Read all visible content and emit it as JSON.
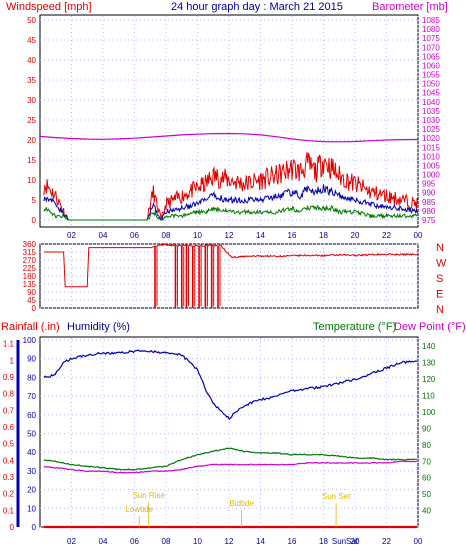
{
  "page": {
    "title": "24 hour graph day : March 21 2015"
  },
  "colors": {
    "wind": "#e00000",
    "wind_avg": "#0000aa",
    "wind_low": "#007700",
    "baro": "#cc00cc",
    "dir": "#e00000",
    "rain": "#e00000",
    "humidity": "#0000aa",
    "temp": "#007700",
    "dew": "#cc00cc",
    "sun": "#ddbb00"
  },
  "chart_data": [
    {
      "type": "line",
      "id": "wind-baro",
      "title": "24 hour graph day : March 21 2015",
      "ylabel": "Windspeed [mph]",
      "ylabel_right": "Barometer [mb]",
      "ylim": [
        0,
        50
      ],
      "y_ticks": [
        0,
        5,
        10,
        15,
        20,
        25,
        30,
        35,
        40,
        45,
        50
      ],
      "ylim_right": [
        975,
        1085
      ],
      "y_ticks_right": [
        975,
        980,
        985,
        990,
        995,
        1000,
        1005,
        1010,
        1015,
        1020,
        1025,
        1030,
        1035,
        1040,
        1045,
        1050,
        1055,
        1060,
        1065,
        1070,
        1075,
        1080,
        1085
      ],
      "x_ticks": [
        "02",
        "04",
        "06",
        "08",
        "10",
        "12",
        "14",
        "16",
        "18",
        "20",
        "22",
        "00"
      ],
      "series": [
        {
          "axis": "left",
          "x": [
            0,
            0.3,
            0.6,
            1,
            1.4,
            1.8,
            2,
            2.5,
            3,
            4,
            5,
            6,
            6.8,
            7,
            7.2,
            7.4,
            7.7,
            8,
            9,
            10,
            10.5,
            11,
            12,
            13,
            14,
            15,
            16,
            16.5,
            17,
            17.5,
            18,
            18.5,
            19,
            20,
            21,
            22,
            23,
            24
          ],
          "values": [
            6,
            9,
            8,
            6,
            3,
            0,
            0,
            0,
            0,
            0,
            0,
            0,
            0,
            4,
            7,
            4,
            0,
            4,
            6,
            8,
            9,
            11,
            10,
            9,
            10,
            11,
            13,
            12,
            14,
            12,
            15,
            13,
            11,
            9,
            7,
            6,
            5,
            4
          ]
        },
        {
          "axis": "left",
          "x": [
            0,
            0.3,
            0.6,
            1,
            1.4,
            1.8,
            2,
            3,
            4,
            5,
            6,
            6.8,
            7,
            7.2,
            7.4,
            7.7,
            8,
            9,
            10,
            10.5,
            11,
            12,
            13,
            14,
            15,
            16,
            16.5,
            17,
            17.5,
            18,
            18.5,
            19,
            20,
            21,
            22,
            23,
            24
          ],
          "values": [
            4,
            6,
            5,
            4,
            2,
            0,
            0,
            0,
            0,
            0,
            0,
            0,
            2,
            4,
            2,
            0,
            2,
            3,
            4,
            5,
            6,
            5,
            5,
            5,
            6,
            7,
            6,
            8,
            7,
            8,
            7,
            6,
            5,
            4,
            3,
            3,
            2
          ]
        },
        {
          "axis": "left",
          "x": [
            0,
            0.3,
            0.6,
            1,
            1.4,
            1.8,
            2,
            3,
            4,
            5,
            6,
            6.8,
            7,
            7.2,
            7.4,
            7.7,
            8,
            9,
            10,
            10.5,
            11,
            12,
            13,
            14,
            15,
            16,
            16.5,
            17,
            17.5,
            18,
            18.5,
            19,
            20,
            21,
            22,
            23,
            24
          ],
          "values": [
            1,
            3,
            2,
            1,
            1,
            0,
            0,
            0,
            0,
            0,
            0,
            0,
            1,
            2,
            1,
            0,
            1,
            1,
            2,
            2,
            3,
            2,
            2,
            2,
            2,
            3,
            2,
            3,
            3,
            3,
            3,
            2,
            2,
            1,
            1,
            1,
            1
          ]
        },
        {
          "axis": "right",
          "x": [
            0,
            1,
            2,
            3,
            4,
            5,
            6,
            7,
            8,
            9,
            10,
            11,
            12,
            13,
            14,
            15,
            16,
            17,
            18,
            19,
            20,
            21,
            22,
            23,
            24
          ],
          "values": [
            1021,
            1020.3,
            1019.8,
            1019.5,
            1019.4,
            1019.6,
            1020,
            1020.6,
            1021.2,
            1021.8,
            1022.2,
            1022.5,
            1022.6,
            1022.4,
            1021.8,
            1020.8,
            1019.6,
            1018.6,
            1018.1,
            1018,
            1018.2,
            1018.6,
            1019,
            1019.2,
            1019.3
          ]
        }
      ]
    },
    {
      "type": "line",
      "id": "direction",
      "ylim": [
        0,
        360
      ],
      "y_ticks": [
        0,
        45,
        90,
        135,
        180,
        225,
        270,
        315,
        360
      ],
      "y_labels_right": [
        "N",
        "W",
        "S",
        "E",
        "N"
      ],
      "series": [
        {
          "x": [
            0,
            1.5,
            1.6,
            3,
            3.1,
            7.1,
            7.2,
            7.5,
            7.55,
            8,
            9,
            11.5,
            12,
            12.2,
            13,
            14,
            15,
            16,
            17,
            18,
            19,
            20,
            21,
            22,
            23,
            24
          ],
          "values": [
            315,
            315,
            120,
            120,
            340,
            340,
            345,
            350,
            355,
            355,
            352,
            350,
            300,
            285,
            290,
            293,
            291,
            294,
            296,
            295,
            298,
            297,
            300,
            302,
            301,
            303
          ]
        },
        {
          "x": [
            7.3,
            8.6,
            9.0,
            9.3,
            9.7,
            10.1,
            10.5,
            10.9,
            11.3
          ],
          "values": [
            0,
            0,
            0,
            0,
            0,
            0,
            0,
            0,
            0
          ]
        }
      ]
    },
    {
      "type": "line",
      "id": "rain-hum-temp",
      "ylabel": "Rainfall (.in)",
      "ylabel_humidity": "Humidity (%)",
      "ylabel_temp": "Temperature (°F)",
      "ylabel_dew": "Dew Point (°F)",
      "ylim": [
        0,
        1.2
      ],
      "y_ticks": [
        0,
        0.1,
        0.2,
        0.3,
        0.4,
        0.5,
        0.6,
        0.7,
        0.8,
        0.9,
        1,
        1.1
      ],
      "ylim_humidity": [
        0,
        100
      ],
      "y_ticks_humidity": [
        0,
        10,
        20,
        30,
        40,
        50,
        60,
        70,
        80,
        90,
        100
      ],
      "ylim_temp": [
        30,
        145
      ],
      "y_ticks_temp": [
        40,
        50,
        60,
        70,
        80,
        90,
        100,
        110,
        120,
        130,
        140
      ],
      "x_ticks": [
        "02",
        "04",
        "06",
        "08",
        "10",
        "12",
        "14",
        "16",
        "18",
        "20",
        "22",
        "00"
      ],
      "x_labels_extra": [
        "Sun",
        "Sat"
      ],
      "annotations": [
        {
          "x": 6.9,
          "label": "Sun Rise"
        },
        {
          "x": 6.3,
          "label": "Lowtide"
        },
        {
          "x": 12.8,
          "label": "Bidtide"
        },
        {
          "x": 18.8,
          "label": "Sun Set"
        }
      ],
      "series": [
        {
          "axis": "humidity",
          "x": [
            0,
            0.5,
            1,
            1.5,
            2,
            3,
            4,
            5,
            6,
            7,
            8,
            9,
            10,
            10.5,
            11,
            11.5,
            12,
            12.5,
            13,
            14,
            15,
            16,
            17,
            18,
            19,
            20,
            21,
            22,
            23,
            24
          ],
          "values": [
            81,
            80,
            82,
            88,
            90,
            92,
            93,
            93,
            94,
            94,
            93,
            92,
            84,
            74,
            66,
            62,
            58,
            62,
            65,
            68,
            70,
            73,
            74,
            75,
            77,
            79,
            82,
            85,
            88,
            89
          ]
        },
        {
          "axis": "temp",
          "x": [
            0,
            1,
            2,
            3,
            4,
            5,
            6,
            7,
            8,
            9,
            10,
            11,
            12,
            13,
            14,
            15,
            16,
            17,
            18,
            19,
            20,
            21,
            22,
            23,
            24
          ],
          "values": [
            71,
            70,
            68,
            67,
            66,
            65,
            65,
            66,
            67,
            71,
            74,
            76,
            78,
            76,
            75,
            75,
            74,
            74,
            74,
            73,
            72,
            72,
            71,
            71,
            71
          ]
        },
        {
          "axis": "temp",
          "x": [
            0,
            1,
            2,
            3,
            4,
            5,
            6,
            7,
            8,
            9,
            10,
            11,
            12,
            13,
            14,
            15,
            16,
            17,
            18,
            19,
            20,
            21,
            22,
            23,
            24
          ],
          "values": [
            67,
            66,
            65,
            64,
            64,
            63,
            63,
            64,
            64,
            65,
            67,
            68,
            68,
            68,
            68,
            68,
            68,
            69,
            69,
            69,
            69,
            69,
            69,
            70,
            70
          ]
        },
        {
          "axis": "left",
          "x": [
            0,
            24
          ],
          "values": [
            0,
            0
          ]
        }
      ]
    }
  ]
}
